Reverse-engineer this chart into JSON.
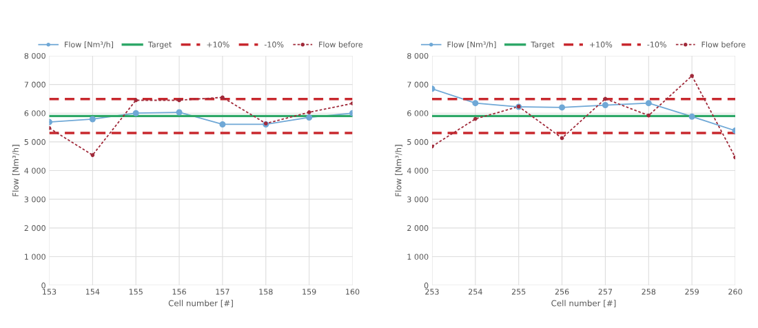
{
  "chart_data": [
    {
      "type": "line",
      "xlabel": "Cell number [#]",
      "ylabel": "Flow [Nm³/h]",
      "x": [
        153,
        154,
        155,
        156,
        157,
        158,
        159,
        160
      ],
      "xlim": [
        153,
        160
      ],
      "xticks": [
        153,
        154,
        155,
        156,
        157,
        158,
        159,
        160
      ],
      "ylim": [
        0,
        8000
      ],
      "yticks": [
        0,
        {
          "value": 1000,
          "label": "1 000"
        },
        {
          "value": 2000,
          "label": "2 000"
        },
        {
          "value": 3000,
          "label": "3 000"
        },
        {
          "value": 4000,
          "label": "4 000"
        },
        {
          "value": 5000,
          "label": "5 000"
        },
        {
          "value": 6000,
          "label": "6 000"
        },
        {
          "value": 7000,
          "label": "7 000"
        },
        {
          "value": 8000,
          "label": "8 000"
        }
      ],
      "grid": true,
      "legend": "top",
      "series": [
        {
          "name": "Flow [Nm³/h]",
          "color": "#6fa8d6",
          "marker": "circle",
          "line_style": "solid",
          "values": [
            5690,
            5790,
            6000,
            6030,
            5610,
            5610,
            5850,
            6000
          ]
        },
        {
          "name": "Target",
          "color": "#2ea868",
          "marker": "none",
          "line_style": "solid",
          "values": [
            5900,
            5900,
            5900,
            5900,
            5900,
            5900,
            5900,
            5900
          ]
        },
        {
          "name": "+10%",
          "color": "#c8282e",
          "marker": "none",
          "line_style": "dashed",
          "values": [
            6490,
            6490,
            6490,
            6490,
            6490,
            6490,
            6490,
            6490
          ]
        },
        {
          "name": "-10%",
          "color": "#c8282e",
          "marker": "none",
          "line_style": "dashed",
          "values": [
            5310,
            5310,
            5310,
            5310,
            5310,
            5310,
            5310,
            5310
          ]
        },
        {
          "name": "Flow before",
          "color": "#a02a3a",
          "marker": "circle",
          "line_style": "dotted",
          "values": [
            5480,
            4540,
            6450,
            6450,
            6550,
            5640,
            6030,
            6340
          ]
        }
      ]
    },
    {
      "type": "line",
      "xlabel": "Cell number [#]",
      "ylabel": "Flow [Nm³/h]",
      "x": [
        253,
        254,
        255,
        256,
        257,
        258,
        259,
        260
      ],
      "xlim": [
        253,
        260
      ],
      "xticks": [
        253,
        254,
        255,
        256,
        257,
        258,
        259,
        260
      ],
      "ylim": [
        0,
        8000
      ],
      "yticks": [
        0,
        {
          "value": 1000,
          "label": "1 000"
        },
        {
          "value": 2000,
          "label": "2 000"
        },
        {
          "value": 3000,
          "label": "3 000"
        },
        {
          "value": 4000,
          "label": "4 000"
        },
        {
          "value": 5000,
          "label": "5 000"
        },
        {
          "value": 6000,
          "label": "6 000"
        },
        {
          "value": 7000,
          "label": "7 000"
        },
        {
          "value": 8000,
          "label": "8 000"
        }
      ],
      "grid": true,
      "legend": "top",
      "series": [
        {
          "name": "Flow [Nm³/h]",
          "color": "#6fa8d6",
          "marker": "circle",
          "line_style": "solid",
          "values": [
            6850,
            6350,
            6220,
            6200,
            6280,
            6350,
            5880,
            5390
          ]
        },
        {
          "name": "Target",
          "color": "#2ea868",
          "marker": "none",
          "line_style": "solid",
          "values": [
            5900,
            5900,
            5900,
            5900,
            5900,
            5900,
            5900,
            5900
          ]
        },
        {
          "name": "+10%",
          "color": "#c8282e",
          "marker": "none",
          "line_style": "dashed",
          "values": [
            6490,
            6490,
            6490,
            6490,
            6490,
            6490,
            6490,
            6490
          ]
        },
        {
          "name": "-10%",
          "color": "#c8282e",
          "marker": "none",
          "line_style": "dashed",
          "values": [
            5310,
            5310,
            5310,
            5310,
            5310,
            5310,
            5310,
            5310
          ]
        },
        {
          "name": "Flow before",
          "color": "#a02a3a",
          "marker": "circle",
          "line_style": "dotted",
          "values": [
            4840,
            5800,
            6230,
            5130,
            6500,
            5920,
            7300,
            4460
          ]
        }
      ]
    }
  ]
}
